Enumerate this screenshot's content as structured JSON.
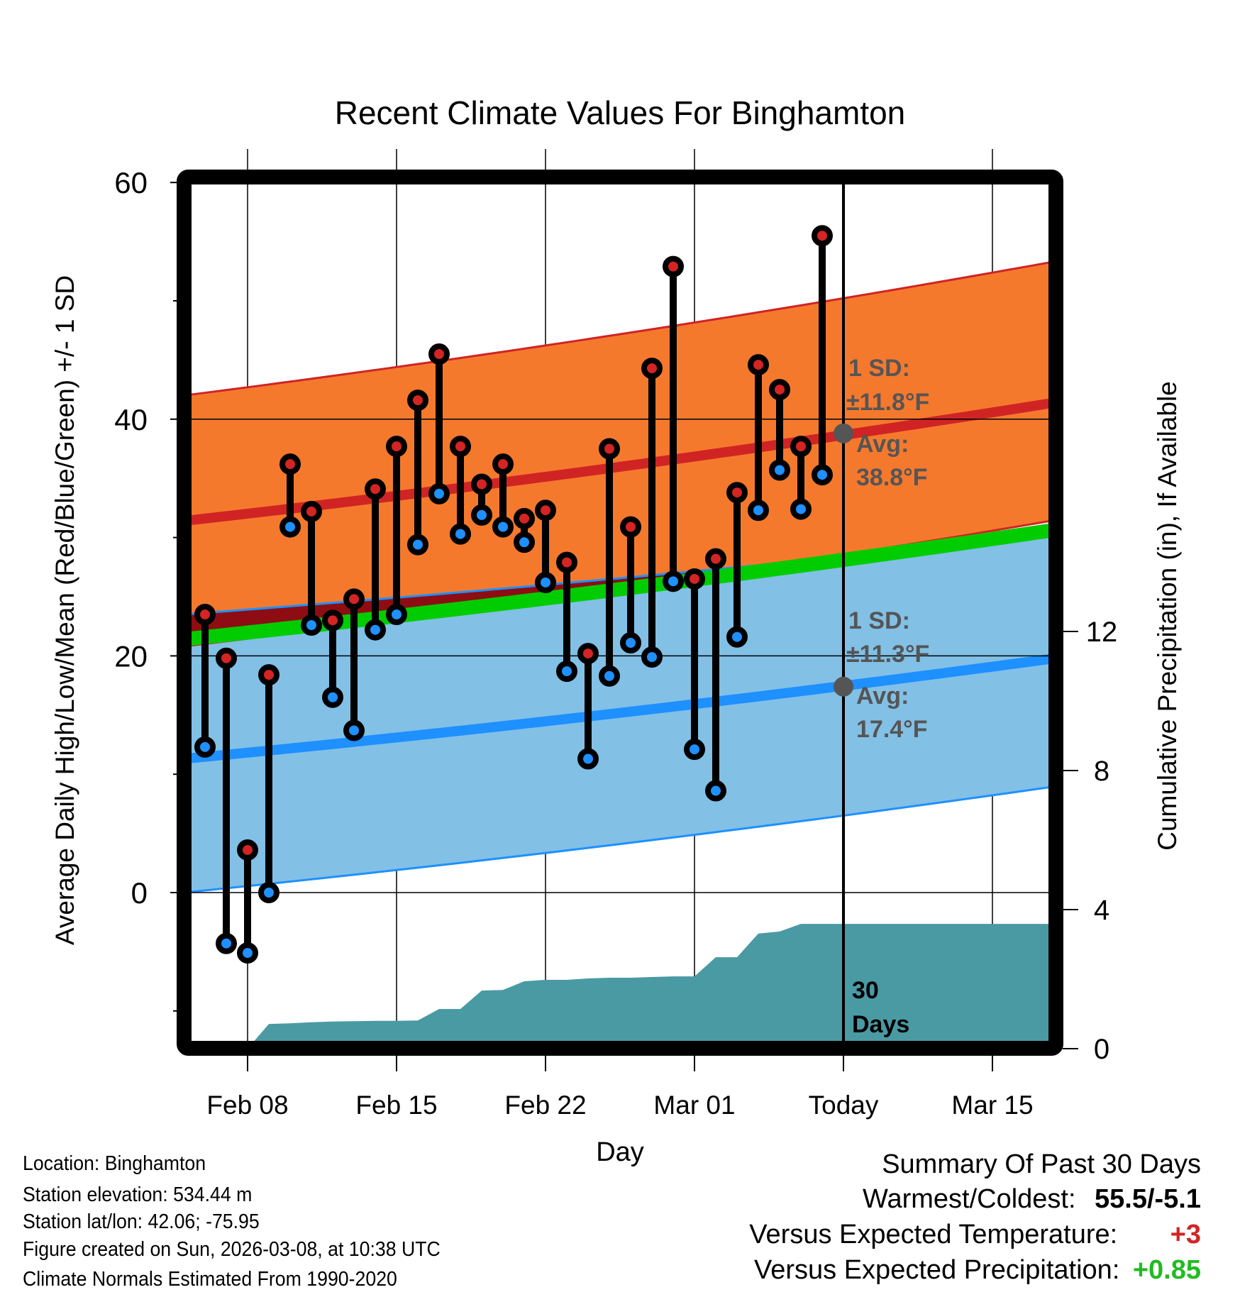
{
  "chart_data": {
    "type": "line",
    "title": "Recent Climate Values For Binghamton",
    "xlabel": "Day",
    "ylabel": "Average Daily High/Low/Mean (Red/Blue/Green) +/- 1 SD",
    "y2label": "Cumulative Precipitation (in), If Available",
    "ylim": [
      -12.5,
      62.5
    ],
    "y2lim": [
      0,
      20
    ],
    "yticks": [
      60,
      40,
      20,
      0
    ],
    "yminor_ticks": [
      50,
      30,
      10,
      -10
    ],
    "y2ticks": [
      0,
      4,
      8,
      12
    ],
    "x_start": "Feb 05",
    "x_end": "Mar 20",
    "xticks": [
      {
        "label": "Feb 08",
        "day": 3
      },
      {
        "label": "Feb 15",
        "day": 10
      },
      {
        "label": "Feb 22",
        "day": 17
      },
      {
        "label": "Mar 01",
        "day": 24
      },
      {
        "label": "Today",
        "day": 31
      },
      {
        "label": "Mar 15",
        "day": 38
      }
    ],
    "today_day": 31,
    "days": [
      "Feb 06",
      "Feb 07",
      "Feb 08",
      "Feb 09",
      "Feb 10",
      "Feb 11",
      "Feb 12",
      "Feb 13",
      "Feb 14",
      "Feb 15",
      "Feb 16",
      "Feb 17",
      "Feb 18",
      "Feb 19",
      "Feb 20",
      "Feb 21",
      "Feb 22",
      "Feb 23",
      "Feb 24",
      "Feb 25",
      "Feb 26",
      "Feb 27",
      "Feb 28",
      "Mar 01",
      "Mar 02",
      "Mar 03",
      "Mar 04",
      "Mar 05",
      "Mar 06",
      "Mar 07"
    ],
    "series": [
      {
        "name": "Daily High",
        "color": "#d42424",
        "values": [
          23.5,
          19.8,
          3.6,
          18.4,
          36.2,
          32.2,
          23.0,
          24.8,
          34.1,
          37.7,
          41.6,
          45.5,
          37.7,
          34.5,
          36.2,
          31.6,
          32.3,
          27.9,
          20.2,
          37.5,
          30.9,
          44.3,
          52.9,
          26.5,
          28.2,
          33.8,
          44.6,
          42.5,
          37.7,
          55.5
        ]
      },
      {
        "name": "Daily Low",
        "color": "#1e90ff",
        "values": [
          12.3,
          -4.3,
          -5.1,
          0.0,
          30.9,
          22.6,
          16.5,
          13.7,
          22.2,
          23.5,
          29.4,
          33.7,
          30.3,
          31.9,
          30.9,
          29.6,
          26.2,
          18.7,
          11.3,
          18.3,
          21.1,
          19.9,
          26.3,
          12.1,
          8.6,
          21.6,
          32.3,
          35.7,
          32.4,
          35.3
        ]
      }
    ],
    "normals": {
      "range_days": [
        0,
        43
      ],
      "high_mean": [
        31.4,
        42.0
      ],
      "high_sd_band_top": [
        42.0,
        54.0
      ],
      "high_sd_band_bottom": [
        20.8,
        32.1
      ],
      "low_mean": [
        11.3,
        20.3
      ],
      "low_sd_band_top": [
        23.5,
        30.6
      ],
      "low_sd_band_bottom": [
        0.0,
        9.5
      ],
      "mean": [
        21.4,
        31.2
      ],
      "colors": {
        "high_band": "#f5792d",
        "high_line": "#d02424",
        "low_band": "#82c0e6",
        "low_line": "#1e90ff",
        "mean_line": "#00cc00",
        "overlap": "#8e0d12"
      }
    },
    "precipitation": {
      "color": "#4a9aa4",
      "days": [
        3,
        4,
        5,
        6,
        7,
        8,
        9,
        10,
        11,
        12,
        13,
        14,
        15,
        16,
        17,
        18,
        19,
        20,
        21,
        22,
        23,
        24,
        25,
        26,
        27,
        28,
        29,
        30,
        43
      ],
      "cumulative_in": [
        0.0,
        0.71,
        0.73,
        0.76,
        0.78,
        0.79,
        0.8,
        0.8,
        0.81,
        1.14,
        1.14,
        1.67,
        1.69,
        1.94,
        1.98,
        1.98,
        2.02,
        2.04,
        2.04,
        2.06,
        2.08,
        2.08,
        2.63,
        2.63,
        3.31,
        3.37,
        3.59,
        3.59,
        3.59
      ]
    },
    "annotations": {
      "high": {
        "sd_label": "1 SD:",
        "sd_value": "±11.8°F",
        "avg_label": "Avg:",
        "avg_value": "38.8°F",
        "avg": 38.8
      },
      "low": {
        "sd_label": "1 SD:",
        "sd_value": "±11.3°F",
        "avg_label": "Avg:",
        "avg_value": "17.4°F",
        "avg": 17.4
      },
      "period": "30",
      "period_unit": "Days"
    }
  },
  "info": {
    "location": "Location: Binghamton",
    "elevation": "Station elevation: 534.44 m",
    "latlon": "Station lat/lon: 42.06; -75.95",
    "created": "Figure created on Sun, 2026-03-08, at 10:38 UTC",
    "normals": "Climate Normals Estimated From 1990-2020"
  },
  "summary": {
    "title": "Summary Of Past 30 Days",
    "warmest_label": "Warmest/Coldest:",
    "warmest_value": "55.5/-5.1",
    "temp_label": "Versus Expected Temperature:",
    "temp_value": "+3",
    "temp_color": "#d42424",
    "precip_label": "Versus Expected Precipitation:",
    "precip_value": "+0.85",
    "precip_color": "#22bb22"
  }
}
